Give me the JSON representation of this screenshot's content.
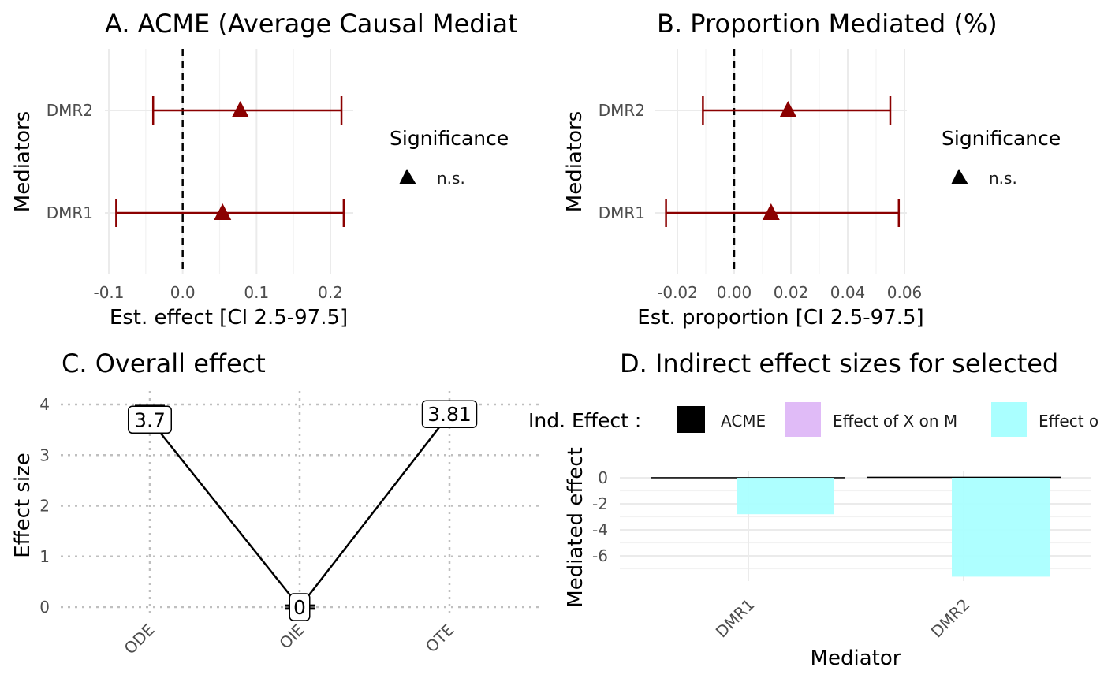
{
  "colors": {
    "errorbar": "#8b0000",
    "point": "#8b0000",
    "zero_line": "#000000",
    "acme": "#000000",
    "effect_x_on_m": "#e0bbf7",
    "effect_m_on_y": "#aaffff"
  },
  "chart_data": [
    {
      "id": "A",
      "type": "errorbar",
      "title": "A. ACME (Average Causal Mediat",
      "xlabel": "Est. effect [CI 2.5-97.5]",
      "ylabel": "Mediators",
      "xlim": [
        -0.1,
        0.2
      ],
      "x_ticks": [
        "-0.1",
        "0.0",
        "0.1",
        "0.2"
      ],
      "categories": [
        "DMR1",
        "DMR2"
      ],
      "estimates": [
        0.054,
        0.078
      ],
      "ci_low": [
        -0.09,
        -0.04
      ],
      "ci_high": [
        0.218,
        0.215
      ],
      "reference_line": 0,
      "legend": {
        "title": "Significance",
        "items": [
          "n.s."
        ],
        "shape": "triangle"
      }
    },
    {
      "id": "B",
      "type": "errorbar",
      "title": "B. Proportion Mediated (%)",
      "xlabel": "Est. proportion [CI 2.5-97.5]",
      "ylabel": "Mediators",
      "xlim": [
        -0.02,
        0.06
      ],
      "x_ticks": [
        "-0.02",
        "0.00",
        "0.02",
        "0.04",
        "0.06"
      ],
      "categories": [
        "DMR1",
        "DMR2"
      ],
      "estimates": [
        0.013,
        0.019
      ],
      "ci_low": [
        -0.024,
        -0.011
      ],
      "ci_high": [
        0.058,
        0.055
      ],
      "reference_line": 0,
      "legend": {
        "title": "Significance",
        "items": [
          "n.s."
        ],
        "shape": "triangle"
      }
    },
    {
      "id": "C",
      "type": "line",
      "title": "C. Overall effect",
      "xlabel": "",
      "ylabel": "Effect size",
      "ylim": [
        0,
        4
      ],
      "y_ticks": [
        "0",
        "1",
        "2",
        "3",
        "4"
      ],
      "categories": [
        "ODE",
        "OIE",
        "OTE"
      ],
      "values": [
        3.7,
        0,
        3.81
      ],
      "labels": [
        "3.7",
        "0",
        "3.81"
      ],
      "ci_low": [
        3.44,
        -0.03,
        3.56
      ],
      "ci_high": [
        3.97,
        0.03,
        4.06
      ]
    },
    {
      "id": "D",
      "type": "bar",
      "title": "D. Indirect effect sizes for selected",
      "xlabel": "Mediator",
      "ylabel": "Mediated effect",
      "y_ticks": [
        "0",
        "-2",
        "-4",
        "-6"
      ],
      "categories": [
        "DMR1",
        "DMR2"
      ],
      "series": [
        {
          "name": "ACME",
          "values": [
            0.05,
            0.08
          ]
        },
        {
          "name": "Effect of X on M",
          "values": [
            0,
            0
          ]
        },
        {
          "name": "Effect o",
          "values": [
            -2.8,
            -7.6
          ]
        }
      ],
      "legend": {
        "title": "Ind. Effect :",
        "placement": "top"
      }
    }
  ]
}
